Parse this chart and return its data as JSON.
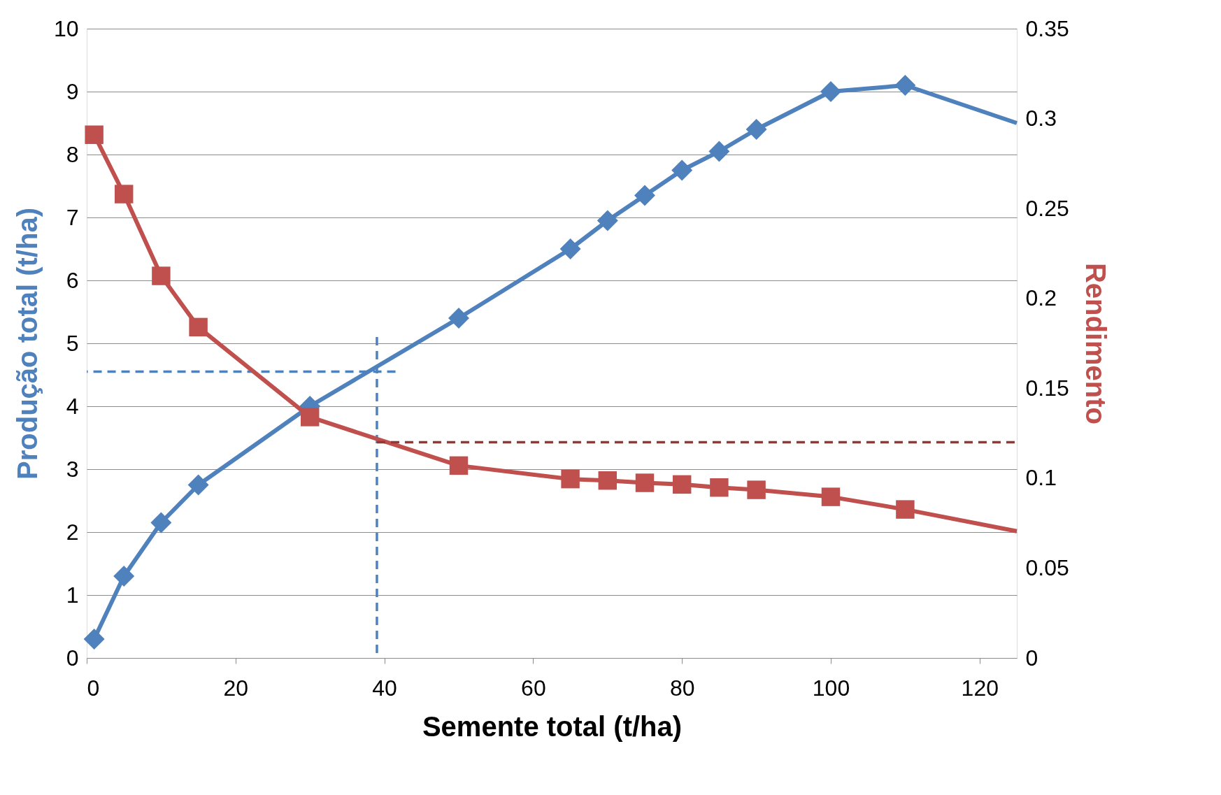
{
  "chart_data": {
    "type": "line",
    "xlabel": "Semente total (t/ha)",
    "ylabel": "Produção total (t/ha)",
    "y2label": "Rendimento",
    "xlim": [
      0,
      125
    ],
    "xticks": [
      0,
      20,
      40,
      60,
      80,
      100,
      120
    ],
    "ylim": [
      0,
      10
    ],
    "yticks": [
      0,
      1,
      2,
      3,
      4,
      5,
      6,
      7,
      8,
      9,
      10
    ],
    "y2lim": [
      0,
      0.35
    ],
    "y2ticks": [
      0,
      0.05,
      0.1,
      0.15,
      0.2,
      0.25,
      0.3,
      0.35
    ],
    "grid": "y",
    "series": [
      {
        "color": "#4f81bd",
        "marker": "diamond",
        "x": [
          1,
          5,
          10,
          15,
          30,
          50,
          65,
          70,
          75,
          80,
          85,
          90,
          100,
          110
        ],
        "values": [
          0.3,
          1.3,
          2.15,
          2.75,
          4.0,
          5.4,
          6.5,
          6.95,
          7.35,
          7.75,
          8.05,
          8.4,
          9.0,
          9.1
        ]
      },
      {
        "color": "#4f81bd",
        "marker": "none",
        "x": [
          110,
          125
        ],
        "values": [
          9.1,
          8.5
        ]
      },
      {
        "color": "#c0504d",
        "marker": "square",
        "axis": "y2",
        "x": [
          1,
          5,
          10,
          15,
          30,
          50,
          65,
          70,
          75,
          80,
          85,
          90,
          100,
          110
        ],
        "values": [
          0.291,
          0.258,
          0.2125,
          0.184,
          0.134,
          0.107,
          0.0995,
          0.0987,
          0.0974,
          0.0965,
          0.0948,
          0.0935,
          0.0896,
          0.0826
        ]
      },
      {
        "color": "#c0504d",
        "marker": "none",
        "axis": "y2",
        "x": [
          110,
          125
        ],
        "values": [
          0.0826,
          0.0705
        ]
      },
      {
        "color": "#4f81bd",
        "marker": "none",
        "line_style": "dashed",
        "x": [
          39,
          39
        ],
        "values": [
          5.1,
          0
        ]
      },
      {
        "color": "#4f81bd",
        "marker": "none",
        "line_style": "dashed",
        "x": [
          41.5,
          0
        ],
        "values": [
          4.55,
          4.55
        ]
      },
      {
        "color": "#953735",
        "marker": "none",
        "line_style": "dashed",
        "axis": "y2",
        "x": [
          39,
          125
        ],
        "values": [
          0.12,
          0.12
        ]
      }
    ]
  }
}
